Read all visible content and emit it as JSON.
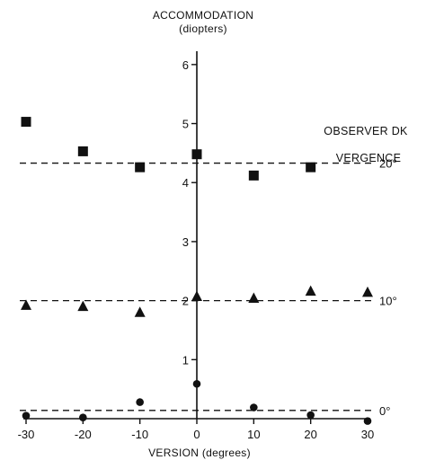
{
  "chart_data": {
    "type": "scatter",
    "title": "",
    "ylabel": "ACCOMMODATION",
    "ylabel_unit": "(diopters)",
    "xlabel": "VERSION (degrees)",
    "xlim": [
      -30,
      30
    ],
    "ylim": [
      0,
      6.5
    ],
    "x_ticks": [
      -30,
      -20,
      -10,
      0,
      10,
      20,
      30
    ],
    "x_tick_labels": [
      "-30",
      "-20",
      "-10",
      "0",
      "10",
      "20",
      "30"
    ],
    "y_ticks": [
      1,
      2,
      3,
      4,
      5,
      6
    ],
    "y_tick_labels": [
      "1",
      "2",
      "3",
      "4",
      "5",
      "6"
    ],
    "grid": false,
    "legend": {
      "observer": "OBSERVER DK",
      "vergence_title": "VERGENCE"
    },
    "series": [
      {
        "name": "20°",
        "marker": "square",
        "reference_level": 4.33,
        "x": [
          -30,
          -20,
          -10,
          0,
          10,
          20
        ],
        "y": [
          5.03,
          4.53,
          4.26,
          4.48,
          4.12,
          4.26
        ]
      },
      {
        "name": "10°",
        "marker": "triangle",
        "reference_level": 2.0,
        "x": [
          -30,
          -20,
          -10,
          0,
          10,
          20,
          30
        ],
        "y": [
          1.92,
          1.9,
          1.8,
          2.07,
          2.04,
          2.16,
          2.14
        ]
      },
      {
        "name": "0°",
        "marker": "circle",
        "reference_level": 0.14,
        "x": [
          -30,
          -20,
          -10,
          0,
          10,
          20,
          30
        ],
        "y": [
          0.05,
          0.02,
          0.28,
          0.59,
          0.19,
          0.06,
          -0.04
        ]
      }
    ]
  }
}
